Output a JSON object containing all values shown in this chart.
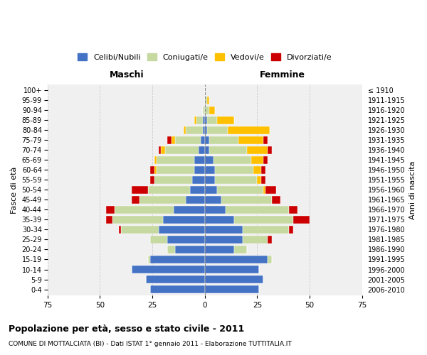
{
  "age_groups": [
    "0-4",
    "5-9",
    "10-14",
    "15-19",
    "20-24",
    "25-29",
    "30-34",
    "35-39",
    "40-44",
    "45-49",
    "50-54",
    "55-59",
    "60-64",
    "65-69",
    "70-74",
    "75-79",
    "80-84",
    "85-89",
    "90-94",
    "95-99",
    "100+"
  ],
  "birth_years": [
    "2006-2010",
    "2001-2005",
    "1996-2000",
    "1991-1995",
    "1986-1990",
    "1981-1985",
    "1976-1980",
    "1971-1975",
    "1966-1970",
    "1961-1965",
    "1956-1960",
    "1951-1955",
    "1946-1950",
    "1941-1945",
    "1936-1940",
    "1931-1935",
    "1926-1930",
    "1921-1925",
    "1916-1920",
    "1911-1915",
    "≤ 1910"
  ],
  "males": {
    "celibi": [
      26,
      28,
      35,
      26,
      14,
      18,
      22,
      20,
      15,
      9,
      7,
      6,
      5,
      5,
      3,
      2,
      1,
      1,
      0,
      0,
      0
    ],
    "coniugati": [
      0,
      0,
      0,
      1,
      4,
      8,
      18,
      24,
      28,
      22,
      20,
      18,
      18,
      18,
      16,
      12,
      8,
      3,
      1,
      0,
      0
    ],
    "vedovi": [
      0,
      0,
      0,
      0,
      0,
      0,
      0,
      0,
      0,
      0,
      0,
      0,
      1,
      1,
      2,
      2,
      1,
      1,
      0,
      0,
      0
    ],
    "divorziati": [
      0,
      0,
      0,
      0,
      0,
      0,
      1,
      3,
      4,
      4,
      8,
      2,
      2,
      0,
      1,
      2,
      0,
      0,
      0,
      0,
      0
    ]
  },
  "females": {
    "nubili": [
      26,
      28,
      26,
      30,
      14,
      18,
      18,
      14,
      10,
      8,
      6,
      5,
      5,
      4,
      2,
      2,
      1,
      1,
      0,
      0,
      0
    ],
    "coniugate": [
      0,
      0,
      0,
      2,
      6,
      12,
      22,
      28,
      30,
      24,
      22,
      20,
      18,
      18,
      18,
      14,
      10,
      5,
      2,
      1,
      0
    ],
    "vedove": [
      0,
      0,
      0,
      0,
      0,
      0,
      0,
      0,
      0,
      0,
      1,
      2,
      4,
      6,
      10,
      12,
      20,
      8,
      3,
      1,
      0
    ],
    "divorziate": [
      0,
      0,
      0,
      0,
      0,
      2,
      2,
      8,
      4,
      4,
      5,
      2,
      2,
      2,
      2,
      2,
      0,
      0,
      0,
      0,
      0
    ]
  },
  "colors": {
    "celibi_nubili": "#4472c4",
    "coniugati": "#c5d9a0",
    "vedovi": "#ffc000",
    "divorziati": "#cc0000"
  },
  "xlim": 75,
  "xlabel_ticks": [
    -75,
    -50,
    -25,
    0,
    25,
    50,
    75
  ],
  "xlabel_labels": [
    "75",
    "50",
    "25",
    "0",
    "25",
    "50",
    "75"
  ],
  "title": "Popolazione per età, sesso e stato civile - 2011",
  "subtitle": "COMUNE DI MOTTALCIATA (BI) - Dati ISTAT 1° gennaio 2011 - Elaborazione TUTTITALIA.IT",
  "legend_labels": [
    "Celibi/Nubili",
    "Coniugati/e",
    "Vedovi/e",
    "Divorziati/e"
  ],
  "ylabel_left": "Fasce di età",
  "ylabel_right": "Anni di nascita",
  "header_left": "Maschi",
  "header_right": "Femmine",
  "bg_color": "#ffffff",
  "plot_bg_color": "#f0f0f0",
  "grid_color": "#cccccc"
}
